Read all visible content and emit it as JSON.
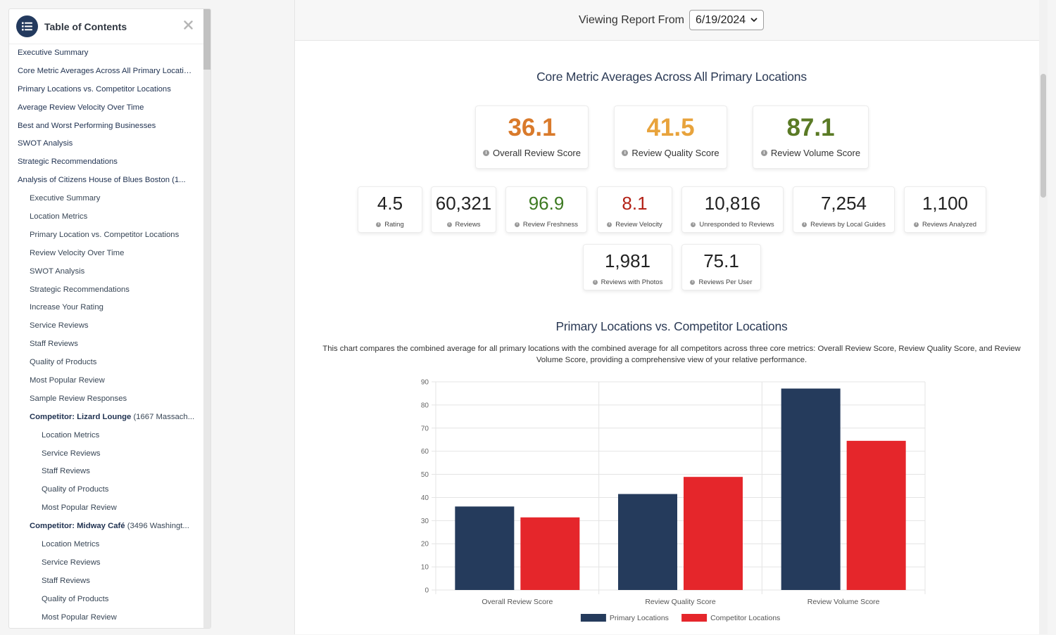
{
  "toc": {
    "title": "Table of Contents",
    "items": [
      {
        "level": 0,
        "label": "Executive Summary"
      },
      {
        "level": 0,
        "label": "Core Metric Averages Across All Primary Locations"
      },
      {
        "level": 0,
        "label": "Primary Locations vs. Competitor Locations"
      },
      {
        "level": 0,
        "label": "Average Review Velocity Over Time"
      },
      {
        "level": 0,
        "label": "Best and Worst Performing Businesses"
      },
      {
        "level": 0,
        "label": "SWOT Analysis"
      },
      {
        "level": 0,
        "label": "Strategic Recommendations"
      },
      {
        "level": 0,
        "label": "Analysis of Citizens House of Blues Boston (1..."
      },
      {
        "level": 1,
        "label": "Executive Summary"
      },
      {
        "level": 1,
        "label": "Location Metrics"
      },
      {
        "level": 1,
        "label": "Primary Location vs. Competitor Locations"
      },
      {
        "level": 1,
        "label": "Review Velocity Over Time"
      },
      {
        "level": 1,
        "label": "SWOT Analysis"
      },
      {
        "level": 1,
        "label": "Strategic Recommendations"
      },
      {
        "level": 1,
        "label": "Increase Your Rating"
      },
      {
        "level": 1,
        "label": "Service Reviews"
      },
      {
        "level": 1,
        "label": "Staff Reviews"
      },
      {
        "level": 1,
        "label": "Quality of Products"
      },
      {
        "level": 1,
        "label": "Most Popular Review"
      },
      {
        "level": 1,
        "label": "Sample Review Responses"
      },
      {
        "level": 1,
        "strong": "Competitor: Lizard Lounge",
        "label": " (1667 Massach..."
      },
      {
        "level": 2,
        "label": "Location Metrics"
      },
      {
        "level": 2,
        "label": "Service Reviews"
      },
      {
        "level": 2,
        "label": "Staff Reviews"
      },
      {
        "level": 2,
        "label": "Quality of Products"
      },
      {
        "level": 2,
        "label": "Most Popular Review"
      },
      {
        "level": 1,
        "strong": "Competitor: Midway Café",
        "label": " (3496 Washingt..."
      },
      {
        "level": 2,
        "label": "Location Metrics"
      },
      {
        "level": 2,
        "label": "Service Reviews"
      },
      {
        "level": 2,
        "label": "Staff Reviews"
      },
      {
        "level": 2,
        "label": "Quality of Products"
      },
      {
        "level": 2,
        "label": "Most Popular Review"
      }
    ]
  },
  "report": {
    "label": "Viewing Report From",
    "date": "6/19/2024"
  },
  "core": {
    "title": "Core Metric Averages Across All Primary Locations",
    "big": [
      {
        "value": "36.1",
        "label": "Overall Review Score",
        "color": "#d97a2b"
      },
      {
        "value": "41.5",
        "label": "Review Quality Score",
        "color": "#e8a33c"
      },
      {
        "value": "87.1",
        "label": "Review Volume Score",
        "color": "#5a7a25"
      }
    ],
    "small": [
      {
        "value": "4.5",
        "label": "Rating",
        "color": "#222222"
      },
      {
        "value": "60,321",
        "label": "Reviews",
        "color": "#222222"
      },
      {
        "value": "96.9",
        "label": "Review Freshness",
        "color": "#3d7a22"
      },
      {
        "value": "8.1",
        "label": "Review Velocity",
        "color": "#b42318"
      },
      {
        "value": "10,816",
        "label": "Unresponded to Reviews",
        "color": "#222222"
      },
      {
        "value": "7,254",
        "label": "Reviews by Local Guides",
        "color": "#222222"
      },
      {
        "value": "1,100",
        "label": "Reviews Analyzed",
        "color": "#222222"
      },
      {
        "value": "1,981",
        "label": "Reviews with Photos",
        "color": "#222222"
      },
      {
        "value": "75.1",
        "label": "Reviews Per User",
        "color": "#222222"
      }
    ]
  },
  "comparison": {
    "title": "Primary Locations vs. Competitor Locations",
    "description": "This chart compares the combined average for all primary locations with the combined average for all competitors across three core metrics: Overall Review Score, Review Quality Score, and Review Volume Score, providing a comprehensive view of your relative performance."
  },
  "chart_data": {
    "type": "bar",
    "categories": [
      "Overall Review Score",
      "Review Quality Score",
      "Review Volume Score"
    ],
    "series": [
      {
        "name": "Primary Locations",
        "values": [
          36.1,
          41.5,
          87.1
        ],
        "color": "#253b5c"
      },
      {
        "name": "Competitor Locations",
        "values": [
          31.4,
          48.9,
          64.5
        ],
        "color": "#e5262b"
      }
    ],
    "yticks": [
      "0",
      "10",
      "20",
      "30",
      "40",
      "50",
      "60",
      "70",
      "80",
      "90"
    ],
    "ylim": [
      0,
      90
    ],
    "grid": true,
    "legend": "bottom"
  }
}
